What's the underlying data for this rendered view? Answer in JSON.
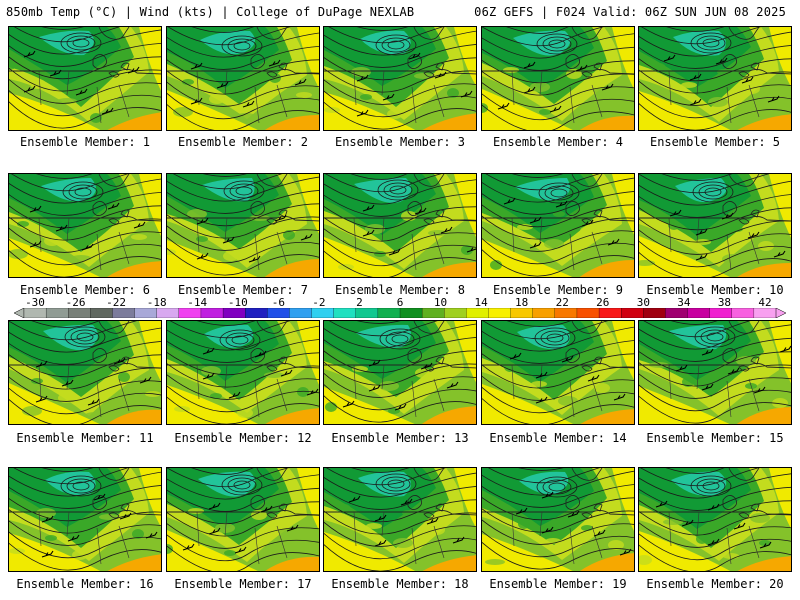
{
  "header": {
    "left": "850mb Temp (°C) | Wind (kts) | College of DuPage NEXLAB",
    "right": "06Z GEFS | F024 Valid: 06Z SUN JUN 08 2025"
  },
  "members": [
    "Ensemble Member: 1",
    "Ensemble Member: 2",
    "Ensemble Member: 3",
    "Ensemble Member: 4",
    "Ensemble Member: 5",
    "Ensemble Member: 6",
    "Ensemble Member: 7",
    "Ensemble Member: 8",
    "Ensemble Member: 9",
    "Ensemble Member: 10",
    "Ensemble Member: 11",
    "Ensemble Member: 12",
    "Ensemble Member: 13",
    "Ensemble Member: 14",
    "Ensemble Member: 15",
    "Ensemble Member: 16",
    "Ensemble Member: 17",
    "Ensemble Member: 18",
    "Ensemble Member: 19",
    "Ensemble Member: 20"
  ],
  "colorbar": {
    "labels": [
      "-30",
      "-26",
      "-22",
      "-18",
      "-14",
      "-10",
      "-6",
      "-2",
      "2",
      "6",
      "10",
      "14",
      "18",
      "22",
      "26",
      "30",
      "34",
      "38",
      "42"
    ],
    "colors": [
      "#b0b8b0",
      "#909c94",
      "#788078",
      "#606860",
      "#7c7c9c",
      "#a8a8d8",
      "#d8a8f0",
      "#f040f0",
      "#c020e0",
      "#8000c0",
      "#2020c0",
      "#2050e8",
      "#30a0f0",
      "#30d0f0",
      "#20e0c0",
      "#10c890",
      "#10b050",
      "#109020",
      "#60b020",
      "#a0d020",
      "#e0f000",
      "#f8f000",
      "#f8c800",
      "#f8a000",
      "#f87800",
      "#f85000",
      "#f81818",
      "#d00010",
      "#a00010",
      "#a00070",
      "#c800a0",
      "#f020d0",
      "#f860e0",
      "#f8a0f0"
    ]
  },
  "palette": {
    "cold_center": "#22c49a",
    "dark_green": "#119a35",
    "mid_green": "#3aa828",
    "light_green": "#84c22a",
    "yellow_green": "#c3dc1e",
    "yellow": "#f0ea00",
    "orange": "#f6a800",
    "red_orange": "#f06a10"
  }
}
